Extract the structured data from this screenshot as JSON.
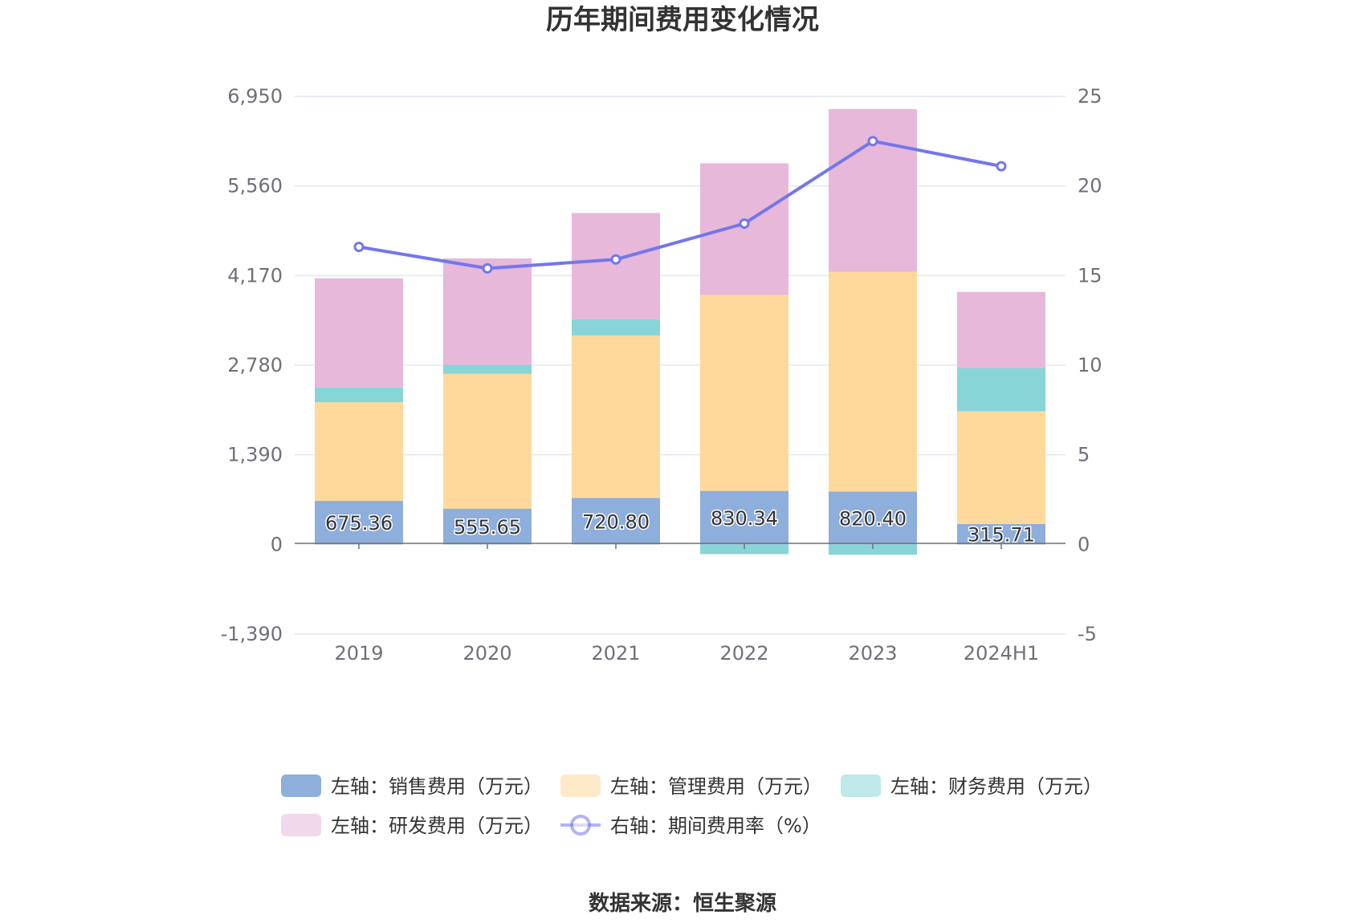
{
  "chart_data": {
    "type": "bar",
    "title": "历年期间费用变化情况",
    "categories": [
      "2019",
      "2020",
      "2021",
      "2022",
      "2023",
      "2024H1"
    ],
    "left_axis": {
      "ylim": [
        -1390,
        6950
      ],
      "ticks": [
        -1390,
        0,
        1390,
        2780,
        4170,
        5560,
        6950
      ],
      "tick_labels": [
        "-1,390",
        "0",
        "1,390",
        "2,780",
        "4,170",
        "5,560",
        "6,950"
      ]
    },
    "right_axis": {
      "ylim": [
        -5,
        25
      ],
      "ticks": [
        -5,
        0,
        5,
        10,
        15,
        20,
        25
      ],
      "tick_labels": [
        "-5",
        "0",
        "5",
        "10",
        "15",
        "20",
        "25"
      ]
    },
    "series": [
      {
        "name": "左轴：销售费用（万元）",
        "type": "bar",
        "axis": "left",
        "color": "#8eaedc",
        "values": [
          675.36,
          555.65,
          720.8,
          830.34,
          820.4,
          315.71
        ],
        "labels": [
          "675.36",
          "555.65",
          "720.80",
          "830.34",
          "820.40",
          "315.71"
        ]
      },
      {
        "name": "左轴：管理费用（万元）",
        "type": "bar",
        "axis": "left",
        "color": "#fed99b",
        "values": [
          1530,
          2090,
          2520,
          3040,
          3410,
          1750
        ]
      },
      {
        "name": "左轴：财务费用（万元）",
        "type": "bar",
        "axis": "left",
        "color": "#88d5d7",
        "values": [
          230,
          140,
          250,
          -150,
          -160,
          670
        ]
      },
      {
        "name": "左轴：研发费用（万元）",
        "type": "bar",
        "axis": "left",
        "color": "#e7b8da",
        "values": [
          1690,
          1650,
          1650,
          2040,
          2520,
          1180
        ]
      },
      {
        "name": "右轴：期间费用率（%）",
        "type": "line",
        "axis": "right",
        "color": "#7377ea",
        "values": [
          16.6,
          15.4,
          15.9,
          17.9,
          22.5,
          21.1
        ]
      }
    ]
  },
  "source_text": "数据来源：恒生聚源"
}
